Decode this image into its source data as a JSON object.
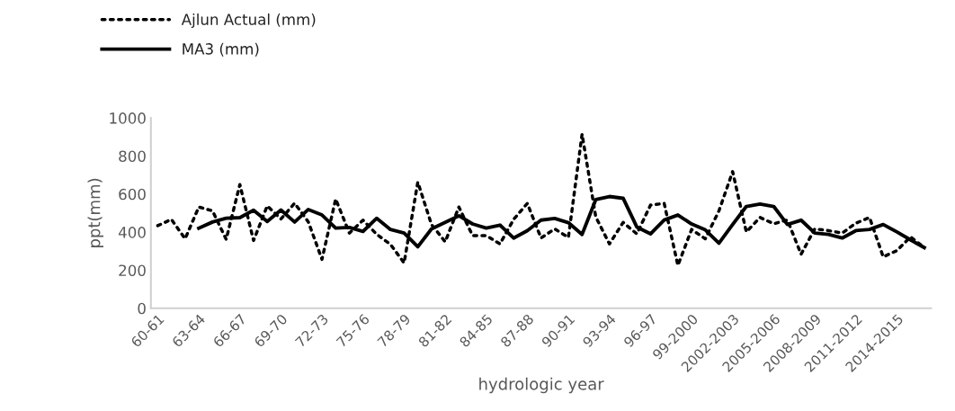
{
  "chart_data": {
    "type": "line",
    "xlabel": "hydrologic year",
    "ylabel": "ppt(mm)",
    "categories": [
      "60-61",
      null,
      null,
      "63-64",
      null,
      null,
      "66-67",
      null,
      null,
      "69-70",
      null,
      null,
      "72-73",
      null,
      null,
      "75-76",
      null,
      null,
      "78-79",
      null,
      null,
      "81-82",
      null,
      null,
      "84-85",
      null,
      null,
      "87-88",
      null,
      null,
      "90-91",
      null,
      null,
      "93-94",
      null,
      null,
      "96-97",
      null,
      null,
      "99-2000",
      null,
      null,
      "2002-2003",
      null,
      null,
      "2005-2006",
      null,
      null,
      "2008-2009",
      null,
      null,
      "2011-2012",
      null,
      null,
      "2014-2015",
      null,
      null
    ],
    "series": [
      {
        "name": "Ajlun Actual (mm)",
        "color": "#000000",
        "line_style": "dotted",
        "values": [
          434,
          467,
          365,
          532,
          512,
          362,
          650,
          356,
          538,
          469,
          552,
          454,
          257,
          574,
          395,
          463,
          388,
          336,
          238,
          663,
          440,
          349,
          532,
          382,
          382,
          338,
          467,
          551,
          369,
          417,
          372,
          915,
          480,
          338,
          451,
          391,
          542,
          551,
          225,
          414,
          365,
          512,
          718,
          401,
          477,
          444,
          464,
          284,
          417,
          408,
          395,
          447,
          477,
          270,
          303,
          375,
          319
        ]
      },
      {
        "name": "MA3 (mm)",
        "color": "#000000",
        "line_style": "solid",
        "values": [
          null,
          null,
          null,
          421,
          453,
          473,
          476,
          515,
          456,
          516,
          453,
          519,
          490,
          421,
          425,
          404,
          473,
          414,
          395,
          323,
          417,
          451,
          486,
          443,
          421,
          437,
          369,
          408,
          463,
          472,
          450,
          388,
          571,
          587,
          578,
          427,
          391,
          464,
          490,
          443,
          412,
          342,
          440,
          535,
          548,
          535,
          440,
          463,
          395,
          388,
          369,
          408,
          414,
          440,
          401,
          359,
          319
        ]
      }
    ],
    "ylim": [
      0,
      1000
    ],
    "yticks": [
      0,
      200,
      400,
      600,
      800,
      1000
    ],
    "grid": false,
    "legend": "top left",
    "marker": "none"
  }
}
